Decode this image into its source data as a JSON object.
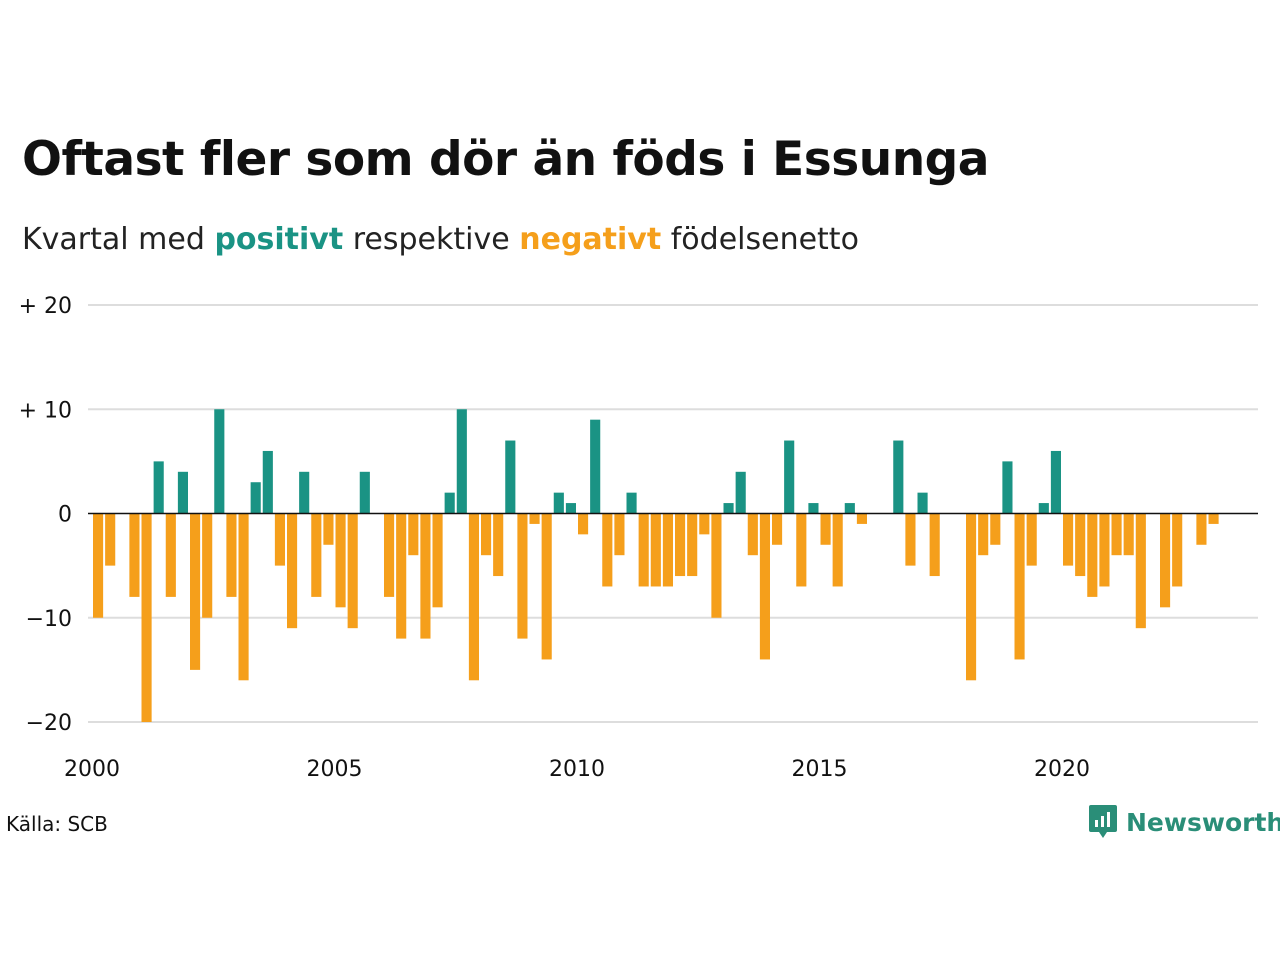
{
  "title": "Oftast fler som dör än föds i Essunga",
  "subtitle": {
    "pre": "Kvartal med",
    "positive": "positivt",
    "mid": "respektive",
    "negative": "negativt",
    "post": "födelsenetto"
  },
  "source": "Källa: SCB",
  "brand": "Newsworthy",
  "colors": {
    "positive": "#1a9384",
    "negative": "#f59f1b",
    "brand": "#2a8e78",
    "grid": "#dddddd"
  },
  "chart_data": {
    "type": "bar",
    "xlabel": "",
    "ylabel": "",
    "ylim": [
      -20,
      20
    ],
    "y_ticks": [
      {
        "value": 20,
        "label": "+ 20"
      },
      {
        "value": 10,
        "label": "+ 10"
      },
      {
        "value": 0,
        "label": "0"
      },
      {
        "value": -10,
        "label": "−10"
      },
      {
        "value": -20,
        "label": "−20"
      }
    ],
    "x_ticks": [
      "2000",
      "2005",
      "2010",
      "2015",
      "2020"
    ],
    "start_year": 2000,
    "end_year": 2023,
    "categories": [
      "2000 Q1",
      "2000 Q2",
      "2000 Q3",
      "2000 Q4",
      "2001 Q1",
      "2001 Q2",
      "2001 Q3",
      "2001 Q4",
      "2002 Q1",
      "2002 Q2",
      "2002 Q3",
      "2002 Q4",
      "2003 Q1",
      "2003 Q2",
      "2003 Q3",
      "2003 Q4",
      "2004 Q1",
      "2004 Q2",
      "2004 Q3",
      "2004 Q4",
      "2005 Q1",
      "2005 Q2",
      "2005 Q3",
      "2005 Q4",
      "2006 Q1",
      "2006 Q2",
      "2006 Q3",
      "2006 Q4",
      "2007 Q1",
      "2007 Q2",
      "2007 Q3",
      "2007 Q4",
      "2008 Q1",
      "2008 Q2",
      "2008 Q3",
      "2008 Q4",
      "2009 Q1",
      "2009 Q2",
      "2009 Q3",
      "2009 Q4",
      "2010 Q1",
      "2010 Q2",
      "2010 Q3",
      "2010 Q4",
      "2011 Q1",
      "2011 Q2",
      "2011 Q3",
      "2011 Q4",
      "2012 Q1",
      "2012 Q2",
      "2012 Q3",
      "2012 Q4",
      "2013 Q1",
      "2013 Q2",
      "2013 Q3",
      "2013 Q4",
      "2014 Q1",
      "2014 Q2",
      "2014 Q3",
      "2014 Q4",
      "2015 Q1",
      "2015 Q2",
      "2015 Q3",
      "2015 Q4",
      "2016 Q1",
      "2016 Q2",
      "2016 Q3",
      "2016 Q4",
      "2017 Q1",
      "2017 Q2",
      "2017 Q3",
      "2017 Q4",
      "2018 Q1",
      "2018 Q2",
      "2018 Q3",
      "2018 Q4",
      "2019 Q1",
      "2019 Q2",
      "2019 Q3",
      "2019 Q4",
      "2020 Q1",
      "2020 Q2",
      "2020 Q3",
      "2020 Q4",
      "2021 Q1",
      "2021 Q2",
      "2021 Q3",
      "2021 Q4",
      "2022 Q1",
      "2022 Q2",
      "2022 Q3",
      "2022 Q4",
      "2023 Q1",
      "2023 Q2",
      "2023 Q3",
      "2023 Q4"
    ],
    "values": [
      -10,
      -5,
      0,
      -8,
      -20,
      5,
      -8,
      4,
      -15,
      -10,
      10,
      -8,
      -16,
      3,
      6,
      -5,
      -11,
      4,
      -8,
      -3,
      -9,
      -11,
      4,
      0,
      -8,
      -12,
      -4,
      -12,
      -9,
      2,
      10,
      -16,
      -4,
      -6,
      7,
      -12,
      -1,
      -14,
      2,
      1,
      -2,
      9,
      -7,
      -4,
      2,
      -7,
      -7,
      -7,
      -6,
      -6,
      -2,
      -10,
      1,
      4,
      -4,
      -14,
      -3,
      7,
      -7,
      1,
      -3,
      -7,
      1,
      -1,
      0,
      0,
      7,
      -5,
      2,
      -6,
      0,
      0,
      -16,
      -4,
      -3,
      5,
      -14,
      -5,
      1,
      6,
      -5,
      -6,
      -8,
      -7,
      -4,
      -4,
      -11,
      0,
      -9,
      -7,
      0,
      -3,
      -1,
      0,
      0,
      0
    ]
  }
}
